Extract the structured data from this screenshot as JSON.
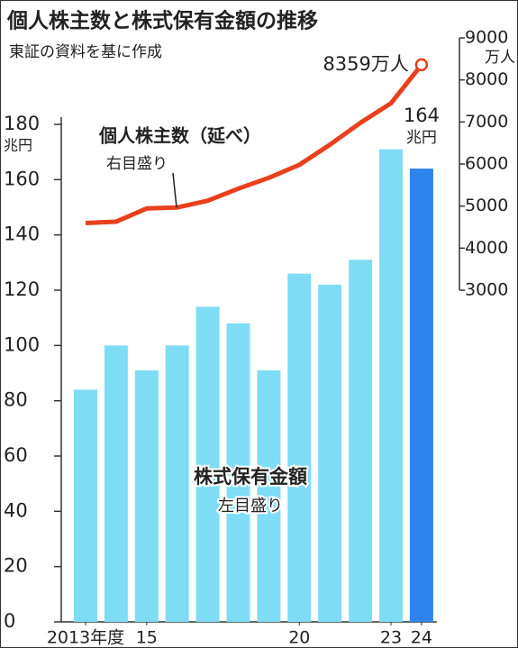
{
  "chart_data": {
    "type": "bar",
    "title": "個人株主数と株式保有金額の推移",
    "subtitle": "東証の資料を基に作成",
    "categories": [
      "2013年度",
      null,
      "15",
      null,
      null,
      null,
      null,
      "20",
      null,
      null,
      "23",
      "24"
    ],
    "series": [
      {
        "name": "株式保有金額",
        "note": "左目盛り",
        "type": "bar",
        "colors": [
          "#7fdcf5",
          "#7fdcf5",
          "#7fdcf5",
          "#7fdcf5",
          "#7fdcf5",
          "#7fdcf5",
          "#7fdcf5",
          "#7fdcf5",
          "#7fdcf5",
          "#7fdcf5",
          "#7fdcf5",
          "#2d84ec"
        ],
        "values": [
          84,
          100,
          91,
          100,
          114,
          108,
          91,
          126,
          122,
          131,
          171,
          164
        ],
        "value_labels": [
          null,
          null,
          null,
          null,
          null,
          null,
          null,
          null,
          null,
          null,
          null,
          "164"
        ],
        "value_unit": "兆円"
      },
      {
        "name": "個人株主数（延べ）",
        "note": "右目盛り",
        "type": "line",
        "axis": "y2",
        "color": "#ea3f1c",
        "values": [
          4596,
          4629,
          4944,
          4967,
          5129,
          5415,
          5672,
          5981,
          6460,
          6981,
          7445,
          8359
        ],
        "value_labels": [
          null,
          null,
          null,
          null,
          null,
          null,
          null,
          null,
          null,
          null,
          null,
          "8359万人"
        ]
      }
    ],
    "ylim": [
      0,
      180
    ],
    "yticks": [
      0,
      20,
      40,
      60,
      80,
      100,
      120,
      140,
      160,
      180
    ],
    "y_unit": "兆円",
    "y2lim": [
      3000,
      9000
    ],
    "y2ticks": [
      3000,
      4000,
      5000,
      6000,
      7000,
      8000,
      9000
    ],
    "y2_unit": "万人"
  }
}
